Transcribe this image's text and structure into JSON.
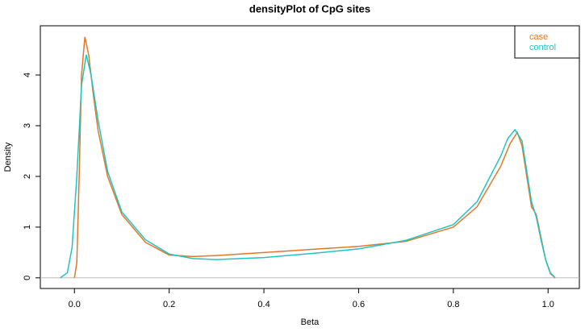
{
  "chart_data": {
    "type": "line",
    "title": "densityPlot of CpG sites",
    "x_label": "Beta",
    "y_label": "Density",
    "xlim": [
      -0.072,
      1.066
    ],
    "ylim": [
      -0.21,
      4.97
    ],
    "xticks": [
      {
        "value": 0,
        "label": "0.0"
      },
      0.2,
      0.4,
      0.6,
      0.8,
      {
        "value": 1,
        "label": "1.0"
      }
    ],
    "yticks": [
      0,
      1,
      2,
      3,
      4
    ],
    "legend": "top-right",
    "series": [
      {
        "name": "case",
        "color": "#e0782a",
        "x": [
          0.0,
          0.005,
          0.01,
          0.015,
          0.022,
          0.03,
          0.04,
          0.05,
          0.07,
          0.1,
          0.15,
          0.2,
          0.25,
          0.3,
          0.4,
          0.5,
          0.6,
          0.7,
          0.8,
          0.85,
          0.9,
          0.92,
          0.935,
          0.945,
          0.955,
          0.965,
          0.975,
          0.985,
          0.995,
          1.005,
          1.015
        ],
        "values": [
          0,
          0.3,
          2.0,
          4.0,
          4.75,
          4.4,
          3.6,
          2.9,
          2.0,
          1.25,
          0.7,
          0.45,
          0.42,
          0.44,
          0.5,
          0.56,
          0.62,
          0.72,
          1.0,
          1.4,
          2.2,
          2.65,
          2.87,
          2.6,
          2.0,
          1.4,
          1.25,
          0.8,
          0.35,
          0.08,
          0
        ]
      },
      {
        "name": "control",
        "color": "#1fc4c4",
        "x": [
          -0.03,
          -0.015,
          -0.005,
          0.005,
          0.015,
          0.025,
          0.035,
          0.05,
          0.07,
          0.1,
          0.15,
          0.2,
          0.25,
          0.3,
          0.4,
          0.5,
          0.6,
          0.7,
          0.8,
          0.85,
          0.9,
          0.915,
          0.93,
          0.945,
          0.955,
          0.965,
          0.975,
          0.985,
          0.995,
          1.005,
          1.015
        ],
        "values": [
          0,
          0.1,
          0.6,
          2.0,
          3.8,
          4.4,
          4.0,
          3.1,
          2.1,
          1.3,
          0.75,
          0.47,
          0.38,
          0.36,
          0.4,
          0.48,
          0.57,
          0.74,
          1.05,
          1.5,
          2.4,
          2.75,
          2.92,
          2.7,
          2.1,
          1.5,
          1.2,
          0.75,
          0.35,
          0.1,
          0
        ]
      }
    ]
  }
}
